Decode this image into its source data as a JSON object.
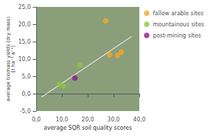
{
  "chart_data": {
    "type": "scatter",
    "xlabel": "average SQR soil quality scores",
    "ylabel": "average biomass yields (dry mass)\n[t ha⁻¹ a⁻¹]",
    "series": [
      {
        "name": "fallow arable sites",
        "color": "#F5A623",
        "x": [
          27.0,
          28.5,
          31.5,
          33.0
        ],
        "values": [
          21.0,
          11.2,
          11.0,
          12.0
        ]
      },
      {
        "name": "mountainous sites",
        "color": "#8DC63F",
        "x": [
          9.0,
          10.5,
          17.0
        ],
        "values": [
          2.8,
          2.2,
          8.3
        ]
      },
      {
        "name": "post-mining sites",
        "color": "#8B1A8B",
        "x": [
          15.0
        ],
        "values": [
          4.5
        ]
      },
      {
        "type": "line",
        "color": "#e0e0e0",
        "x": [
          2.0,
          37.0
        ],
        "values": [
          -1.0,
          16.5
        ]
      }
    ],
    "xlim": [
      0,
      40
    ],
    "xticks": [
      {
        "value": 0,
        "label": "0,0"
      },
      {
        "value": 10,
        "label": "10,0"
      },
      {
        "value": 20,
        "label": "20,0"
      },
      {
        "value": 30,
        "label": "30,0"
      },
      {
        "value": 40,
        "label": "40,0"
      }
    ],
    "ylim": [
      -5,
      25
    ],
    "yticks": [
      {
        "value": -5,
        "label": "-5,0"
      },
      {
        "value": 0,
        "label": "0,0"
      },
      {
        "value": 5,
        "label": "5,0"
      },
      {
        "value": 10,
        "label": "10,0"
      },
      {
        "value": 15,
        "label": "15,0"
      },
      {
        "value": 20,
        "label": "20,0"
      },
      {
        "value": 25,
        "label": "25,0"
      }
    ],
    "grid": false,
    "legend": "right"
  }
}
